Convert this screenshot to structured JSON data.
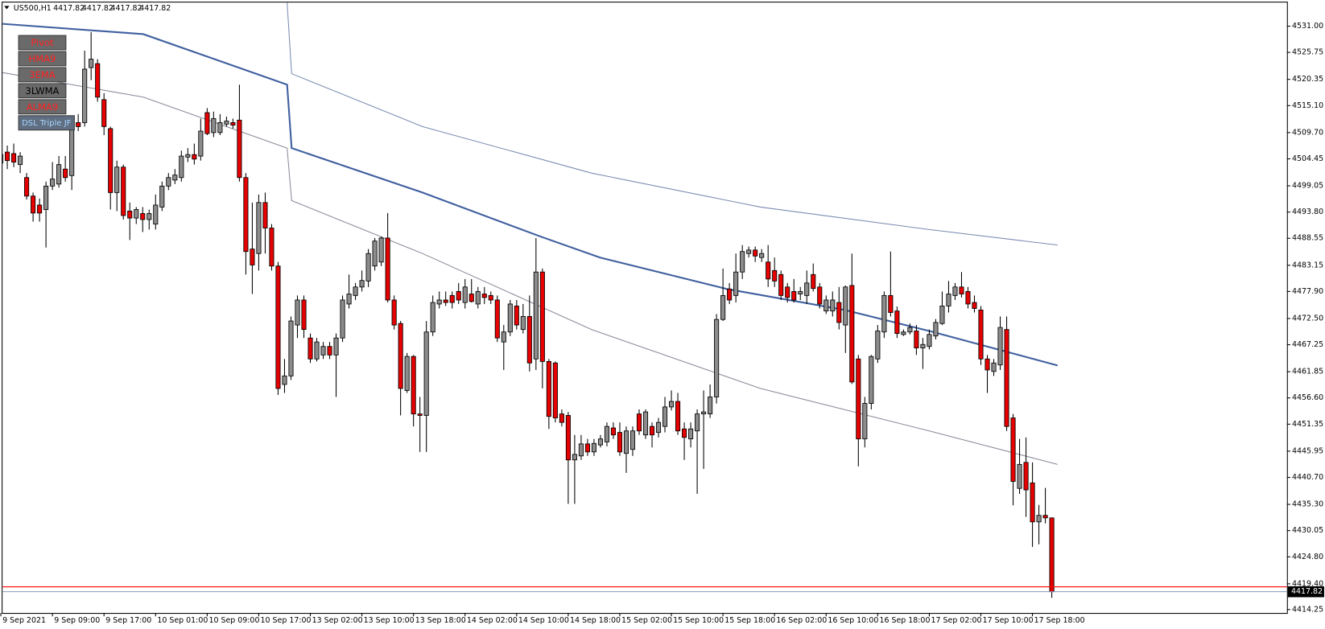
{
  "chart_data": {
    "type": "candlestick",
    "header": {
      "symbol": "US500,H1",
      "values": [
        4417.82,
        4417.82,
        4417.82,
        4417.82
      ]
    },
    "up_color": "#8c8c8c",
    "down_color": "#e60000",
    "wick_color": "#000000",
    "ylim": [
      4413.57,
      4535.73
    ],
    "yticks": [
      {
        "value": 4531.0,
        "label": "4531.00"
      },
      4525.75,
      4520.35,
      {
        "value": 4515.1,
        "label": "4515.10"
      },
      {
        "value": 4509.7,
        "label": "4509.70"
      },
      4504.45,
      4499.05,
      {
        "value": 4493.8,
        "label": "4493.80"
      },
      4488.55,
      4483.15,
      {
        "value": 4477.9,
        "label": "4477.90"
      },
      {
        "value": 4472.5,
        "label": "4472.50"
      },
      4467.25,
      4461.85,
      {
        "value": 4456.6,
        "label": "4456.60"
      },
      4451.35,
      4445.95,
      {
        "value": 4440.7,
        "label": "4440.70"
      },
      {
        "value": 4435.3,
        "label": "4435.30"
      },
      4430.05,
      {
        "value": 4424.8,
        "label": "4424.80"
      },
      {
        "value": 4419.4,
        "label": "4419.40"
      },
      4414.25
    ],
    "categories": [
      "9 Sep 2021",
      null,
      null,
      null,
      null,
      null,
      null,
      null,
      "9 Sep 09:00",
      null,
      null,
      null,
      null,
      null,
      null,
      null,
      "9 Sep 17:00",
      null,
      null,
      null,
      null,
      null,
      null,
      null,
      "10 Sep 01:00",
      null,
      null,
      null,
      null,
      null,
      null,
      null,
      "10 Sep 09:00",
      null,
      null,
      null,
      null,
      null,
      null,
      null,
      "10 Sep 17:00",
      null,
      null,
      null,
      null,
      null,
      null,
      null,
      "13 Sep 02:00",
      null,
      null,
      null,
      null,
      null,
      null,
      null,
      "13 Sep 10:00",
      null,
      null,
      null,
      null,
      null,
      null,
      null,
      "13 Sep 18:00",
      null,
      null,
      null,
      null,
      null,
      null,
      null,
      "14 Sep 02:00",
      null,
      null,
      null,
      null,
      null,
      null,
      null,
      "14 Sep 10:00",
      null,
      null,
      null,
      null,
      null,
      null,
      null,
      "14 Sep 18:00",
      null,
      null,
      null,
      null,
      null,
      null,
      null,
      "15 Sep 02:00",
      null,
      null,
      null,
      null,
      null,
      null,
      null,
      "15 Sep 10:00",
      null,
      null,
      null,
      null,
      null,
      null,
      null,
      "15 Sep 18:00",
      null,
      null,
      null,
      null,
      null,
      null,
      null,
      "16 Sep 02:00",
      null,
      null,
      null,
      null,
      null,
      null,
      null,
      "16 Sep 10:00",
      null,
      null,
      null,
      null,
      null,
      null,
      null,
      "16 Sep 18:00",
      null,
      null,
      null,
      null,
      null,
      null,
      null,
      "17 Sep 02:00",
      null,
      null,
      null,
      null,
      null,
      null,
      null,
      "17 Sep 10:00",
      null,
      null,
      null,
      null,
      null,
      null,
      null,
      "17 Sep 18:00",
      null,
      null,
      null
    ],
    "open": [
      4503.6,
      4505.8,
      4505.5,
      4503.3,
      4500.7,
      4497.0,
      4495.2,
      4494.3,
      4499.0,
      4499.4,
      4502.4,
      4501.1,
      4511.7,
      4511.7,
      4522.7,
      4523.5,
      4516.3,
      4510.5,
      4497.7,
      4502.8,
      4494.0,
      4492.6,
      4493.5,
      4492.3,
      4491.4,
      4494.8,
      4499.0,
      4500.2,
      4500.7,
      4504.8,
      4505.3,
      4505.0,
      4513.7,
      4509.7,
      4509.7,
      4511.4,
      4511.7,
      4512.2,
      4500.7,
      4486.4,
      4485.5,
      4495.7,
      4490.6,
      4483.0,
      4459.3,
      4461.0,
      4471.2,
      4476.2,
      4468.6,
      4464.4,
      4465.2,
      4466.9,
      4465.2,
      4468.6,
      4475.4,
      4477.1,
      4478.8,
      4480.0,
      4483.0,
      4483.8,
      4488.6,
      4476.2,
      4471.5,
      4458.1,
      4464.9,
      4453.4,
      4453.1,
      4469.8,
      4475.4,
      4476.2,
      4477.1,
      4477.9,
      4475.7,
      4477.4,
      4475.4,
      4477.4,
      4477.1,
      4476.2,
      4467.8,
      4469.8,
      4475.0,
      4470.3,
      4472.9,
      4464.4,
      4481.8,
      4463.9,
      4463.6,
      4453.4,
      4453.1,
      4444.2,
      4445.0,
      4447.4,
      4445.8,
      4447.2,
      4447.8,
      4450.6,
      4449.7,
      4445.5,
      4446.3,
      4453.4,
      4449.2,
      4450.9,
      4449.7,
      4450.9,
      4454.8,
      4455.9,
      4450.4,
      4448.4,
      4450.0,
      4453.4,
      4453.4,
      4456.8,
      4472.3,
      4478.4,
      4477.1,
      4481.8,
      4485.5,
      4486.2,
      4484.7,
      4483.8,
      4482.1,
      4481.3,
      4478.8,
      4477.9,
      4477.4,
      4477.1,
      4481.3,
      4478.8,
      4474.0,
      4474.0,
      4475.7,
      4471.2,
      4479.1,
      4464.4,
      4448.4,
      4455.5,
      4464.4,
      4469.8,
      4477.1,
      4474.0,
      4469.3,
      4469.8,
      4470.0,
      4466.6,
      4466.9,
      4469.0,
      4471.5,
      4475.0,
      4477.1,
      4478.8,
      4477.9,
      4475.7,
      4474.2,
      4464.4,
      4461.9,
      4463.2,
      4470.3,
      4452.6,
      4438.5,
      4443.7,
      4439.6,
      4431.8,
      4433.1,
      4432.6
    ],
    "high": [
      4508.3,
      4507.1,
      4507.5,
      4505.8,
      4501.6,
      4497.7,
      4496.5,
      4499.9,
      4503.8,
      4505.0,
      4505.0,
      4512.5,
      4513.4,
      4526.1,
      4529.8,
      4524.4,
      4517.6,
      4510.9,
      4504.1,
      4503.3,
      4495.7,
      4494.8,
      4494.8,
      4494.3,
      4497.3,
      4499.9,
      4501.6,
      4502.4,
      4506.1,
      4506.6,
      4507.5,
      4512.5,
      4514.6,
      4513.9,
      4513.4,
      4512.9,
      4512.5,
      4519.3,
      4501.6,
      4495.7,
      4497.3,
      4497.7,
      4491.4,
      4483.8,
      4464.4,
      4472.9,
      4477.1,
      4477.1,
      4469.5,
      4468.6,
      4467.8,
      4467.8,
      4469.5,
      4477.1,
      4481.3,
      4479.6,
      4482.1,
      4486.4,
      4488.6,
      4488.9,
      4493.6,
      4477.1,
      4472.0,
      4465.6,
      4465.2,
      4456.8,
      4472.0,
      4477.1,
      4477.9,
      4477.9,
      4477.9,
      4479.6,
      4480.4,
      4480.4,
      4478.8,
      4478.8,
      4477.9,
      4477.1,
      4471.2,
      4476.2,
      4476.2,
      4475.4,
      4477.1,
      4488.6,
      4482.5,
      4464.4,
      4463.9,
      4454.3,
      4453.8,
      4449.2,
      4449.2,
      4448.4,
      4448.4,
      4449.2,
      4451.7,
      4451.7,
      4451.7,
      4450.9,
      4450.9,
      4454.3,
      4454.3,
      4451.7,
      4452.6,
      4456.8,
      4458.1,
      4457.6,
      4451.7,
      4451.7,
      4454.3,
      4458.1,
      4459.3,
      4473.4,
      4482.5,
      4479.6,
      4485.5,
      4487.2,
      4486.9,
      4486.9,
      4486.4,
      4487.2,
      4484.7,
      4482.1,
      4479.6,
      4480.4,
      4478.8,
      4482.1,
      4483.5,
      4479.6,
      4477.1,
      4477.9,
      4478.8,
      4479.1,
      4485.5,
      4465.2,
      4456.8,
      4465.2,
      4471.2,
      4477.9,
      4485.9,
      4474.9,
      4470.3,
      4471.5,
      4471.2,
      4468.6,
      4470.3,
      4472.4,
      4477.9,
      4480.0,
      4479.6,
      4481.8,
      4478.8,
      4477.1,
      4475.0,
      4465.2,
      4464.4,
      4472.9,
      4472.9,
      4453.4,
      4448.4,
      4448.7,
      4443.7,
      4435.2,
      4438.6,
      4432.6
    ],
    "low": [
      4502.4,
      4502.4,
      4502.8,
      4501.6,
      4496.3,
      4491.9,
      4491.9,
      4486.7,
      4498.2,
      4498.7,
      4499.9,
      4498.2,
      4510.0,
      4510.9,
      4520.2,
      4515.9,
      4509.2,
      4494.3,
      4494.0,
      4492.3,
      4488.2,
      4491.4,
      4489.8,
      4490.3,
      4490.3,
      4494.0,
      4498.2,
      4499.4,
      4499.9,
      4503.8,
      4503.3,
      4504.1,
      4509.2,
      4508.8,
      4509.2,
      4510.9,
      4510.5,
      4499.9,
      4481.3,
      4477.4,
      4482.1,
      4485.5,
      4482.1,
      4457.2,
      4457.6,
      4460.2,
      4468.6,
      4468.6,
      4463.6,
      4463.9,
      4464.4,
      4464.4,
      4456.8,
      4467.8,
      4474.5,
      4476.2,
      4477.9,
      4478.8,
      4482.1,
      4483.0,
      4475.7,
      4470.3,
      4453.1,
      4457.6,
      4450.9,
      4445.8,
      4445.8,
      4469.0,
      4474.5,
      4475.0,
      4474.5,
      4475.4,
      4474.5,
      4475.7,
      4474.5,
      4475.4,
      4475.4,
      4467.8,
      4462.2,
      4469.0,
      4470.3,
      4469.5,
      4461.9,
      4462.2,
      4458.5,
      4450.4,
      4451.7,
      4450.9,
      4435.4,
      4435.4,
      4444.2,
      4445.0,
      4445.0,
      4446.7,
      4446.9,
      4448.4,
      4445.0,
      4441.6,
      4445.0,
      4449.2,
      4448.4,
      4446.7,
      4448.7,
      4449.7,
      4454.1,
      4449.2,
      4444.2,
      4446.7,
      4437.4,
      4442.4,
      4452.6,
      4455.5,
      4472.0,
      4475.4,
      4475.7,
      4480.4,
      4484.7,
      4483.8,
      4483.8,
      4478.8,
      4478.8,
      4476.2,
      4475.7,
      4475.7,
      4476.2,
      4475.4,
      4477.9,
      4474.5,
      4473.4,
      4472.9,
      4470.3,
      4465.6,
      4459.4,
      4442.9,
      4446.7,
      4454.3,
      4463.6,
      4468.6,
      4472.9,
      4468.6,
      4469.0,
      4469.3,
      4465.2,
      4462.4,
      4466.3,
      4468.3,
      4471.2,
      4473.7,
      4476.2,
      4476.7,
      4474.5,
      4473.7,
      4463.2,
      4457.6,
      4461.0,
      4462.2,
      4450.0,
      4435.1,
      4437.4,
      4432.8,
      4426.8,
      4427.3,
      4431.5,
      4416.6
    ],
    "close": [
      4505.3,
      4504.1,
      4503.8,
      4505.0,
      4497.0,
      4493.6,
      4493.6,
      4499.0,
      4500.4,
      4503.3,
      4500.7,
      4511.2,
      4510.9,
      4522.4,
      4524.4,
      4516.8,
      4510.9,
      4497.7,
      4502.8,
      4493.1,
      4492.6,
      4494.3,
      4492.3,
      4493.5,
      4495.2,
      4499.0,
      4500.7,
      4501.2,
      4505.0,
      4505.3,
      4504.4,
      4510.0,
      4509.5,
      4512.5,
      4511.7,
      4512.0,
      4511.2,
      4500.7,
      4485.9,
      4483.2,
      4495.7,
      4490.6,
      4483.0,
      4458.5,
      4461.0,
      4472.0,
      4476.2,
      4470.3,
      4464.4,
      4467.8,
      4466.9,
      4465.2,
      4468.6,
      4476.2,
      4477.4,
      4478.8,
      4480.1,
      4485.5,
      4488.0,
      4488.6,
      4476.2,
      4471.2,
      4458.5,
      4464.9,
      4453.4,
      4453.1,
      4469.8,
      4475.7,
      4476.2,
      4475.7,
      4475.7,
      4476.2,
      4478.8,
      4475.9,
      4477.9,
      4476.7,
      4476.2,
      4468.6,
      4469.8,
      4475.4,
      4471.2,
      4472.9,
      4463.6,
      4481.8,
      4463.9,
      4452.9,
      4452.6,
      4451.7,
      4444.2,
      4445.3,
      4447.4,
      4445.8,
      4447.5,
      4448.4,
      4450.9,
      4449.2,
      4445.8,
      4450.0,
      4450.0,
      4450.0,
      4453.8,
      4449.2,
      4451.7,
      4454.8,
      4455.9,
      4450.0,
      4448.7,
      4450.4,
      4453.4,
      4453.8,
      4456.8,
      4472.3,
      4477.1,
      4476.2,
      4481.8,
      4485.9,
      4486.2,
      4485.0,
      4485.5,
      4480.4,
      4480.0,
      4477.1,
      4476.7,
      4476.2,
      4477.9,
      4479.6,
      4478.5,
      4475.4,
      4476.2,
      4476.2,
      4471.7,
      4478.8,
      4459.8,
      4448.4,
      4455.5,
      4464.9,
      4470.0,
      4477.1,
      4473.7,
      4469.5,
      4469.8,
      4470.7,
      4466.6,
      4467.3,
      4469.3,
      4471.7,
      4475.0,
      4477.4,
      4478.8,
      4477.4,
      4475.4,
      4474.5,
      4464.4,
      4462.2,
      4463.6,
      4470.7,
      4450.9,
      4439.9,
      4443.3,
      4438.2,
      4431.8,
      4433.1,
      4432.6,
      4417.82
    ],
    "overlays": [
      {
        "color": "#3f5f9f",
        "width": 2,
        "x": [
          -0.1,
          22.1,
          44.4,
          45.1,
          65.4,
          83.7,
          92.9,
          112.6,
          130.9,
          144.0,
          163.9
        ],
        "values": [
          4531.5,
          4529.4,
          4519.3,
          4506.6,
          4497.7,
          4488.9,
          4484.7,
          4478.4,
          4474.2,
          4470.0,
          4463.1
        ]
      },
      {
        "color": "#7a8cb0",
        "width": 1,
        "x": [
          44.4,
          45.1,
          65.4,
          91.6,
          117.8,
          144.0,
          163.9
        ],
        "values": [
          4535.7,
          4521.5,
          4510.9,
          4501.6,
          4494.8,
          4490.3,
          4487.2
        ]
      },
      {
        "color": "#8a8a9a",
        "width": 1,
        "x": [
          -0.1,
          22.1,
          44.4,
          45.1,
          65.4,
          91.6,
          117.8,
          144.0,
          163.9
        ],
        "values": [
          4521.8,
          4516.8,
          4506.6,
          4496.1,
          4485.5,
          4470.3,
          4458.5,
          4450.0,
          4443.3
        ]
      }
    ],
    "hlines": [
      {
        "value": 4418.8,
        "color": "#ff0000"
      },
      {
        "value": 4417.82,
        "color": "#8898b8"
      }
    ]
  },
  "toolbar": {
    "buttons": [
      {
        "label": "Pivot",
        "color": "#ff2020"
      },
      {
        "label": "HMA9",
        "color": "#ff2020"
      },
      {
        "label": "3EMA",
        "color": "#ff2020"
      },
      {
        "label": "3LWMA",
        "color": "#000000"
      },
      {
        "label": "ALMA9",
        "color": "#ff2020"
      },
      {
        "label": "DSL Triple JF",
        "color": "#a8d4ff"
      }
    ]
  }
}
